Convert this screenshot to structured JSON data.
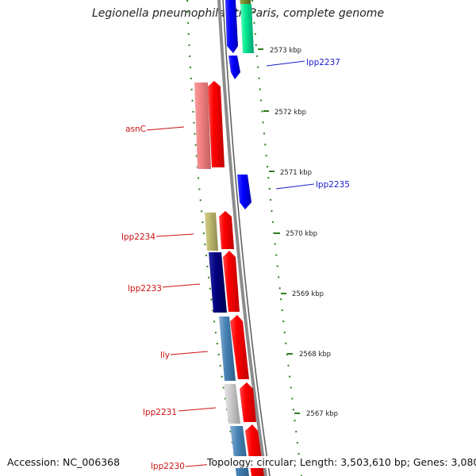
{
  "title": "Legionella pneumophila str. Paris, complete genome",
  "footer": {
    "accession": "Accession: NC_006368",
    "topology": "Topology: circular; Length: 3,503,610 bp; Genes: 3,080"
  },
  "colors": {
    "backbone": "#8c8c8c",
    "tick": "#2e7d1f",
    "scale_text": "#222222",
    "forward_label": "#1a1acc",
    "reverse_label": "#cc1111"
  },
  "scale_ticks": [
    "2573 kbp",
    "2572 kbp",
    "2571 kbp",
    "2570 kbp",
    "2569 kbp",
    "2568 kbp",
    "2567 kbp"
  ],
  "gene_labels_forward": [
    "lpp2237",
    "lpp2235"
  ],
  "gene_labels_reverse": [
    "asnC",
    "lpp2234",
    "lpp2233",
    "lly",
    "lpp2231",
    "lpp2230"
  ]
}
